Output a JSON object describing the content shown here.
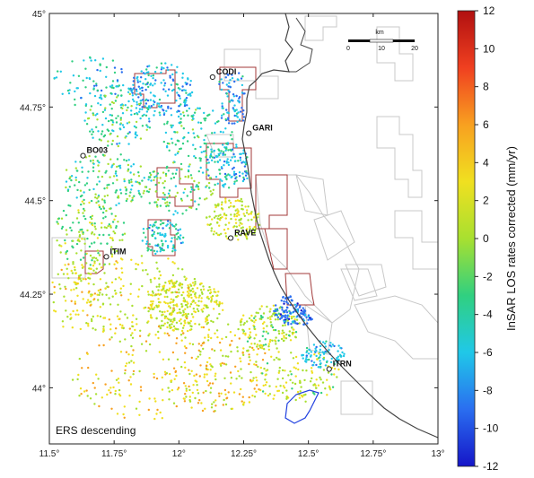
{
  "map": {
    "caption": "ERS descending",
    "lon_ticks": [
      "11.5°",
      "11.75°",
      "12°",
      "12.25°",
      "12.5°",
      "12.75°",
      "13°"
    ],
    "lat_ticks": [
      "45°",
      "44.75°",
      "44.5°",
      "44.25°",
      "44°"
    ],
    "lon_range": [
      11.5,
      13.0
    ],
    "lat_range": [
      43.85,
      45.0
    ],
    "stations": [
      {
        "name": "CODI",
        "lon": 12.13,
        "lat": 44.83
      },
      {
        "name": "GARI",
        "lon": 12.27,
        "lat": 44.68
      },
      {
        "name": "BO03",
        "lon": 11.63,
        "lat": 44.62
      },
      {
        "name": "RAVE",
        "lon": 12.2,
        "lat": 44.4
      },
      {
        "name": "ITIM",
        "lon": 11.72,
        "lat": 44.35
      },
      {
        "name": "ITRN",
        "lon": 12.58,
        "lat": 44.05
      }
    ],
    "scalebar": {
      "unit": "km",
      "labels": [
        "0",
        "10",
        "20"
      ]
    }
  },
  "colorbar": {
    "label": "InSAR LOS rates corrected (mm/yr)",
    "min": -12,
    "max": 12,
    "ticks": [
      "12",
      "10",
      "8",
      "6",
      "4",
      "2",
      "0",
      "-2",
      "-4",
      "-6",
      "-8",
      "-10",
      "-12"
    ],
    "palette": [
      "#1515c8",
      "#2a6ef0",
      "#20c8e8",
      "#30d080",
      "#a8e030",
      "#f0e020",
      "#f8a020",
      "#f04020",
      "#b01010"
    ]
  },
  "colors": {
    "coastline": "#444444",
    "concession_outline": "#c8c8c8",
    "highlight_outline": "#a33a3a",
    "lagoon_outline": "#2040e0",
    "station_marker": "#222222"
  }
}
